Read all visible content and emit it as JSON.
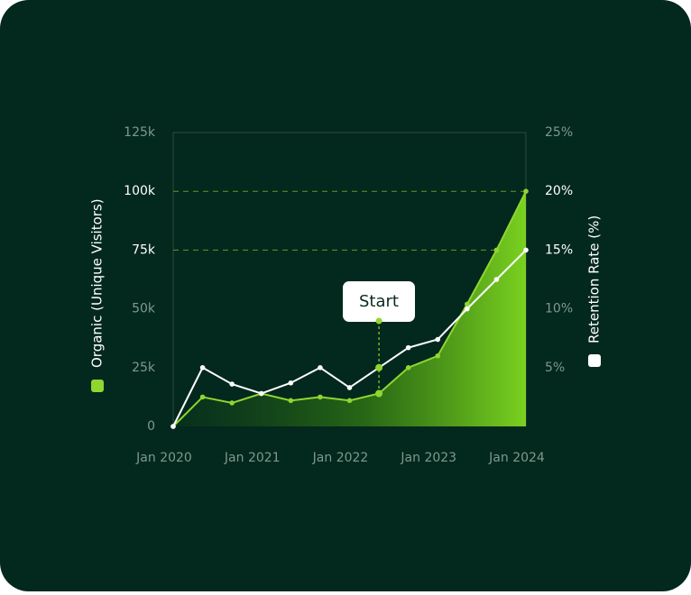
{
  "chart_data": {
    "type": "line",
    "categories": [
      "Jan 2020",
      null,
      null,
      "Jan 2021",
      null,
      null,
      "Jan 2022",
      null,
      null,
      "Jan 2023",
      null,
      null,
      "Jan 2024"
    ],
    "series": [
      {
        "name": "Organic (Unique Visitors)",
        "color": "#8fd630",
        "area": true,
        "values": [
          0,
          12500,
          10000,
          14000,
          11000,
          12500,
          11000,
          14000,
          25000,
          30000,
          52000,
          75000,
          100000
        ]
      },
      {
        "name": "Retention Rate (%)",
        "color": "#ffffff",
        "axis": "y2",
        "values": [
          0,
          5,
          3.6,
          2.8,
          3.7,
          5,
          3.3,
          5,
          6.7,
          7.4,
          10,
          12.5,
          15
        ]
      }
    ],
    "ylim": [
      0,
      125000
    ],
    "yticks": [
      0,
      {
        "value": 25000,
        "label": "25k"
      },
      {
        "value": 50000,
        "label": "50k"
      },
      {
        "value": 75000,
        "label": "75k"
      },
      {
        "value": 100000,
        "label": "100k"
      },
      {
        "value": 125000,
        "label": "125k"
      }
    ],
    "y2lim": [
      0,
      25
    ],
    "y2ticks": [
      {
        "value": 5,
        "label": "5%"
      },
      {
        "value": 10,
        "label": "10%"
      },
      {
        "value": 15,
        "label": "15%"
      },
      {
        "value": 20,
        "label": "20%"
      },
      {
        "value": 25,
        "label": "25%"
      }
    ],
    "reference_lines": [
      75000,
      100000
    ],
    "annotation": "Start"
  }
}
